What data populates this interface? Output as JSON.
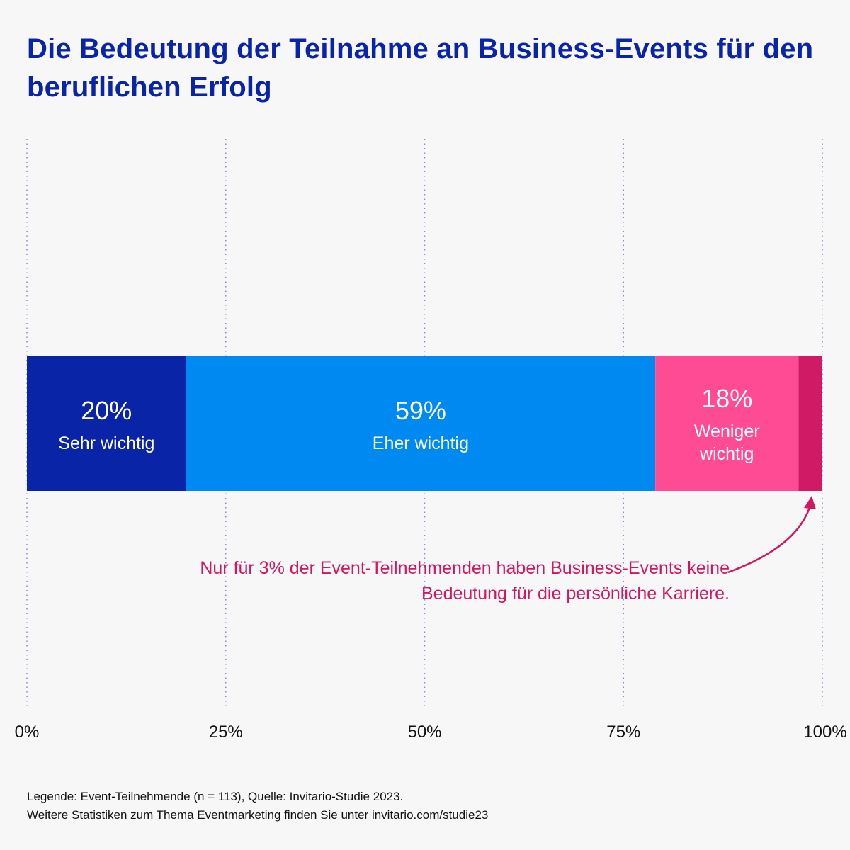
{
  "title": "Die Bedeutung der Teilnahme an Business-Events für den beruflichen Erfolg",
  "chart_data": {
    "type": "bar",
    "orientation": "horizontal-stacked",
    "xlim": [
      0,
      100
    ],
    "xticks": [
      "0%",
      "25%",
      "50%",
      "75%",
      "100%"
    ],
    "xtick_values": [
      0,
      25,
      50,
      75,
      100
    ],
    "grid": "vertical dotted",
    "segments": [
      {
        "value": 20,
        "label": "20%",
        "name": "Sehr wichtig",
        "name_lines": [
          "Sehr wichtig"
        ],
        "color": "#0a24a8"
      },
      {
        "value": 59,
        "label": "59%",
        "name": "Eher wichtig",
        "name_lines": [
          "Eher wichtig"
        ],
        "color": "#0089f0"
      },
      {
        "value": 18,
        "label": "18%",
        "name": "Weniger wichtig",
        "name_lines": [
          "Weniger",
          "wichtig"
        ],
        "color": "#ff4a94"
      },
      {
        "value": 3,
        "label": "",
        "name": "",
        "name_lines": [],
        "color": "#d01a65"
      }
    ],
    "annotation": "Nur für 3% der Event-Teilnehmenden haben Business-Events keine Bedeutung für die persönliche Karriere.",
    "annotation_color": "#d0175f"
  },
  "footer": {
    "legend": "Legende: Event-Teilnehmende (n = 113), Quelle: Invitario-Studie 2023.",
    "more": "Weitere Statistiken zum Thema Eventmarketing finden Sie unter invitario.com/studie23"
  }
}
